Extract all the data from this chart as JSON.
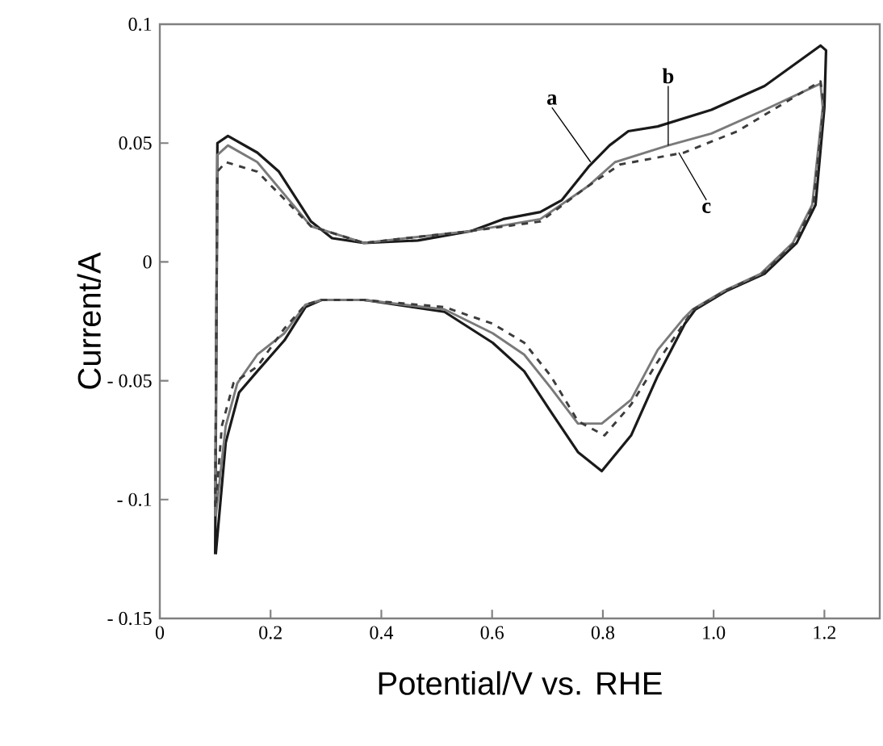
{
  "chart_data": {
    "type": "line",
    "xlabel": "Potential/V vs. RHE",
    "ylabel": "Current/A",
    "xlim": [
      0,
      1.3
    ],
    "ylim": [
      -0.15,
      0.1
    ],
    "xticks": [
      0,
      0.2,
      0.4,
      0.6,
      0.8,
      {
        "value": 1.0,
        "label": "1.0"
      },
      1.2
    ],
    "yticks": [
      {
        "value": -0.15,
        "label": "- 0.15"
      },
      {
        "value": -0.1,
        "label": "- 0.1"
      },
      {
        "value": -0.05,
        "label": "- 0.05"
      },
      0,
      0.05,
      0.1
    ],
    "grid": false,
    "marker": "none",
    "annotations": [
      {
        "text": "a",
        "x": 0.778,
        "y": 0.042
      },
      {
        "text": "b",
        "x": 0.918,
        "y": 0.049
      },
      {
        "text": "c",
        "x": 0.937,
        "y": 0.046
      }
    ],
    "series": [
      {
        "color": "#1a1a1a",
        "line_style": "solid",
        "x": [
          0.1,
          0.104,
          0.123,
          0.176,
          0.215,
          0.273,
          0.311,
          0.369,
          0.466,
          0.562,
          0.62,
          0.687,
          0.726,
          0.774,
          0.812,
          0.846,
          0.899,
          0.996,
          1.092,
          1.193,
          1.203,
          1.2,
          1.184,
          1.15,
          1.092,
          1.025,
          0.967,
          0.948,
          0.899,
          0.851,
          0.798,
          0.755,
          0.706,
          0.658,
          0.601,
          0.514,
          0.369,
          0.292,
          0.263,
          0.225,
          0.176,
          0.143,
          0.119,
          0.101
        ],
        "values": [
          -0.123,
          0.05,
          0.053,
          0.046,
          0.038,
          0.017,
          0.01,
          0.008,
          0.009,
          0.013,
          0.018,
          0.021,
          0.026,
          0.04,
          0.049,
          0.055,
          0.057,
          0.064,
          0.074,
          0.091,
          0.089,
          0.065,
          0.024,
          0.008,
          -0.005,
          -0.012,
          -0.02,
          -0.026,
          -0.048,
          -0.073,
          -0.088,
          -0.08,
          -0.063,
          -0.046,
          -0.034,
          -0.021,
          -0.016,
          -0.016,
          -0.019,
          -0.033,
          -0.046,
          -0.055,
          -0.076,
          -0.123
        ]
      },
      {
        "color": "#7a7a7a",
        "line_style": "solid",
        "x": [
          0.1,
          0.104,
          0.123,
          0.176,
          0.273,
          0.369,
          0.562,
          0.687,
          0.774,
          0.822,
          0.918,
          0.996,
          1.092,
          1.193,
          1.197,
          1.178,
          1.143,
          1.085,
          1.02,
          0.962,
          0.945,
          0.899,
          0.851,
          0.798,
          0.755,
          0.706,
          0.658,
          0.601,
          0.514,
          0.369,
          0.292,
          0.263,
          0.225,
          0.176,
          0.14,
          0.119,
          0.101
        ],
        "values": [
          -0.107,
          0.045,
          0.049,
          0.042,
          0.015,
          0.008,
          0.013,
          0.018,
          0.032,
          0.042,
          0.049,
          0.054,
          0.064,
          0.075,
          0.065,
          0.024,
          0.008,
          -0.005,
          -0.012,
          -0.02,
          -0.024,
          -0.037,
          -0.058,
          -0.068,
          -0.068,
          -0.053,
          -0.039,
          -0.03,
          -0.02,
          -0.016,
          -0.016,
          -0.018,
          -0.03,
          -0.039,
          -0.051,
          -0.069,
          -0.107
        ]
      },
      {
        "color": "#3c3c3c",
        "line_style": "dashed",
        "x": [
          0.1,
          0.104,
          0.119,
          0.176,
          0.273,
          0.369,
          0.562,
          0.687,
          0.774,
          0.831,
          0.947,
          1.043,
          1.193,
          1.199,
          1.18,
          1.146,
          1.088,
          1.022,
          0.964,
          0.946,
          0.899,
          0.851,
          0.803,
          0.755,
          0.706,
          0.658,
          0.601,
          0.514,
          0.369,
          0.292,
          0.263,
          0.225,
          0.176,
          0.133,
          0.112,
          0.101
        ],
        "values": [
          -0.103,
          0.038,
          0.042,
          0.038,
          0.015,
          0.008,
          0.013,
          0.017,
          0.032,
          0.041,
          0.046,
          0.055,
          0.076,
          0.066,
          0.024,
          0.008,
          -0.005,
          -0.012,
          -0.02,
          -0.026,
          -0.042,
          -0.06,
          -0.073,
          -0.067,
          -0.048,
          -0.034,
          -0.026,
          -0.019,
          -0.016,
          -0.016,
          -0.018,
          -0.028,
          -0.044,
          -0.051,
          -0.069,
          -0.103
        ]
      }
    ]
  }
}
